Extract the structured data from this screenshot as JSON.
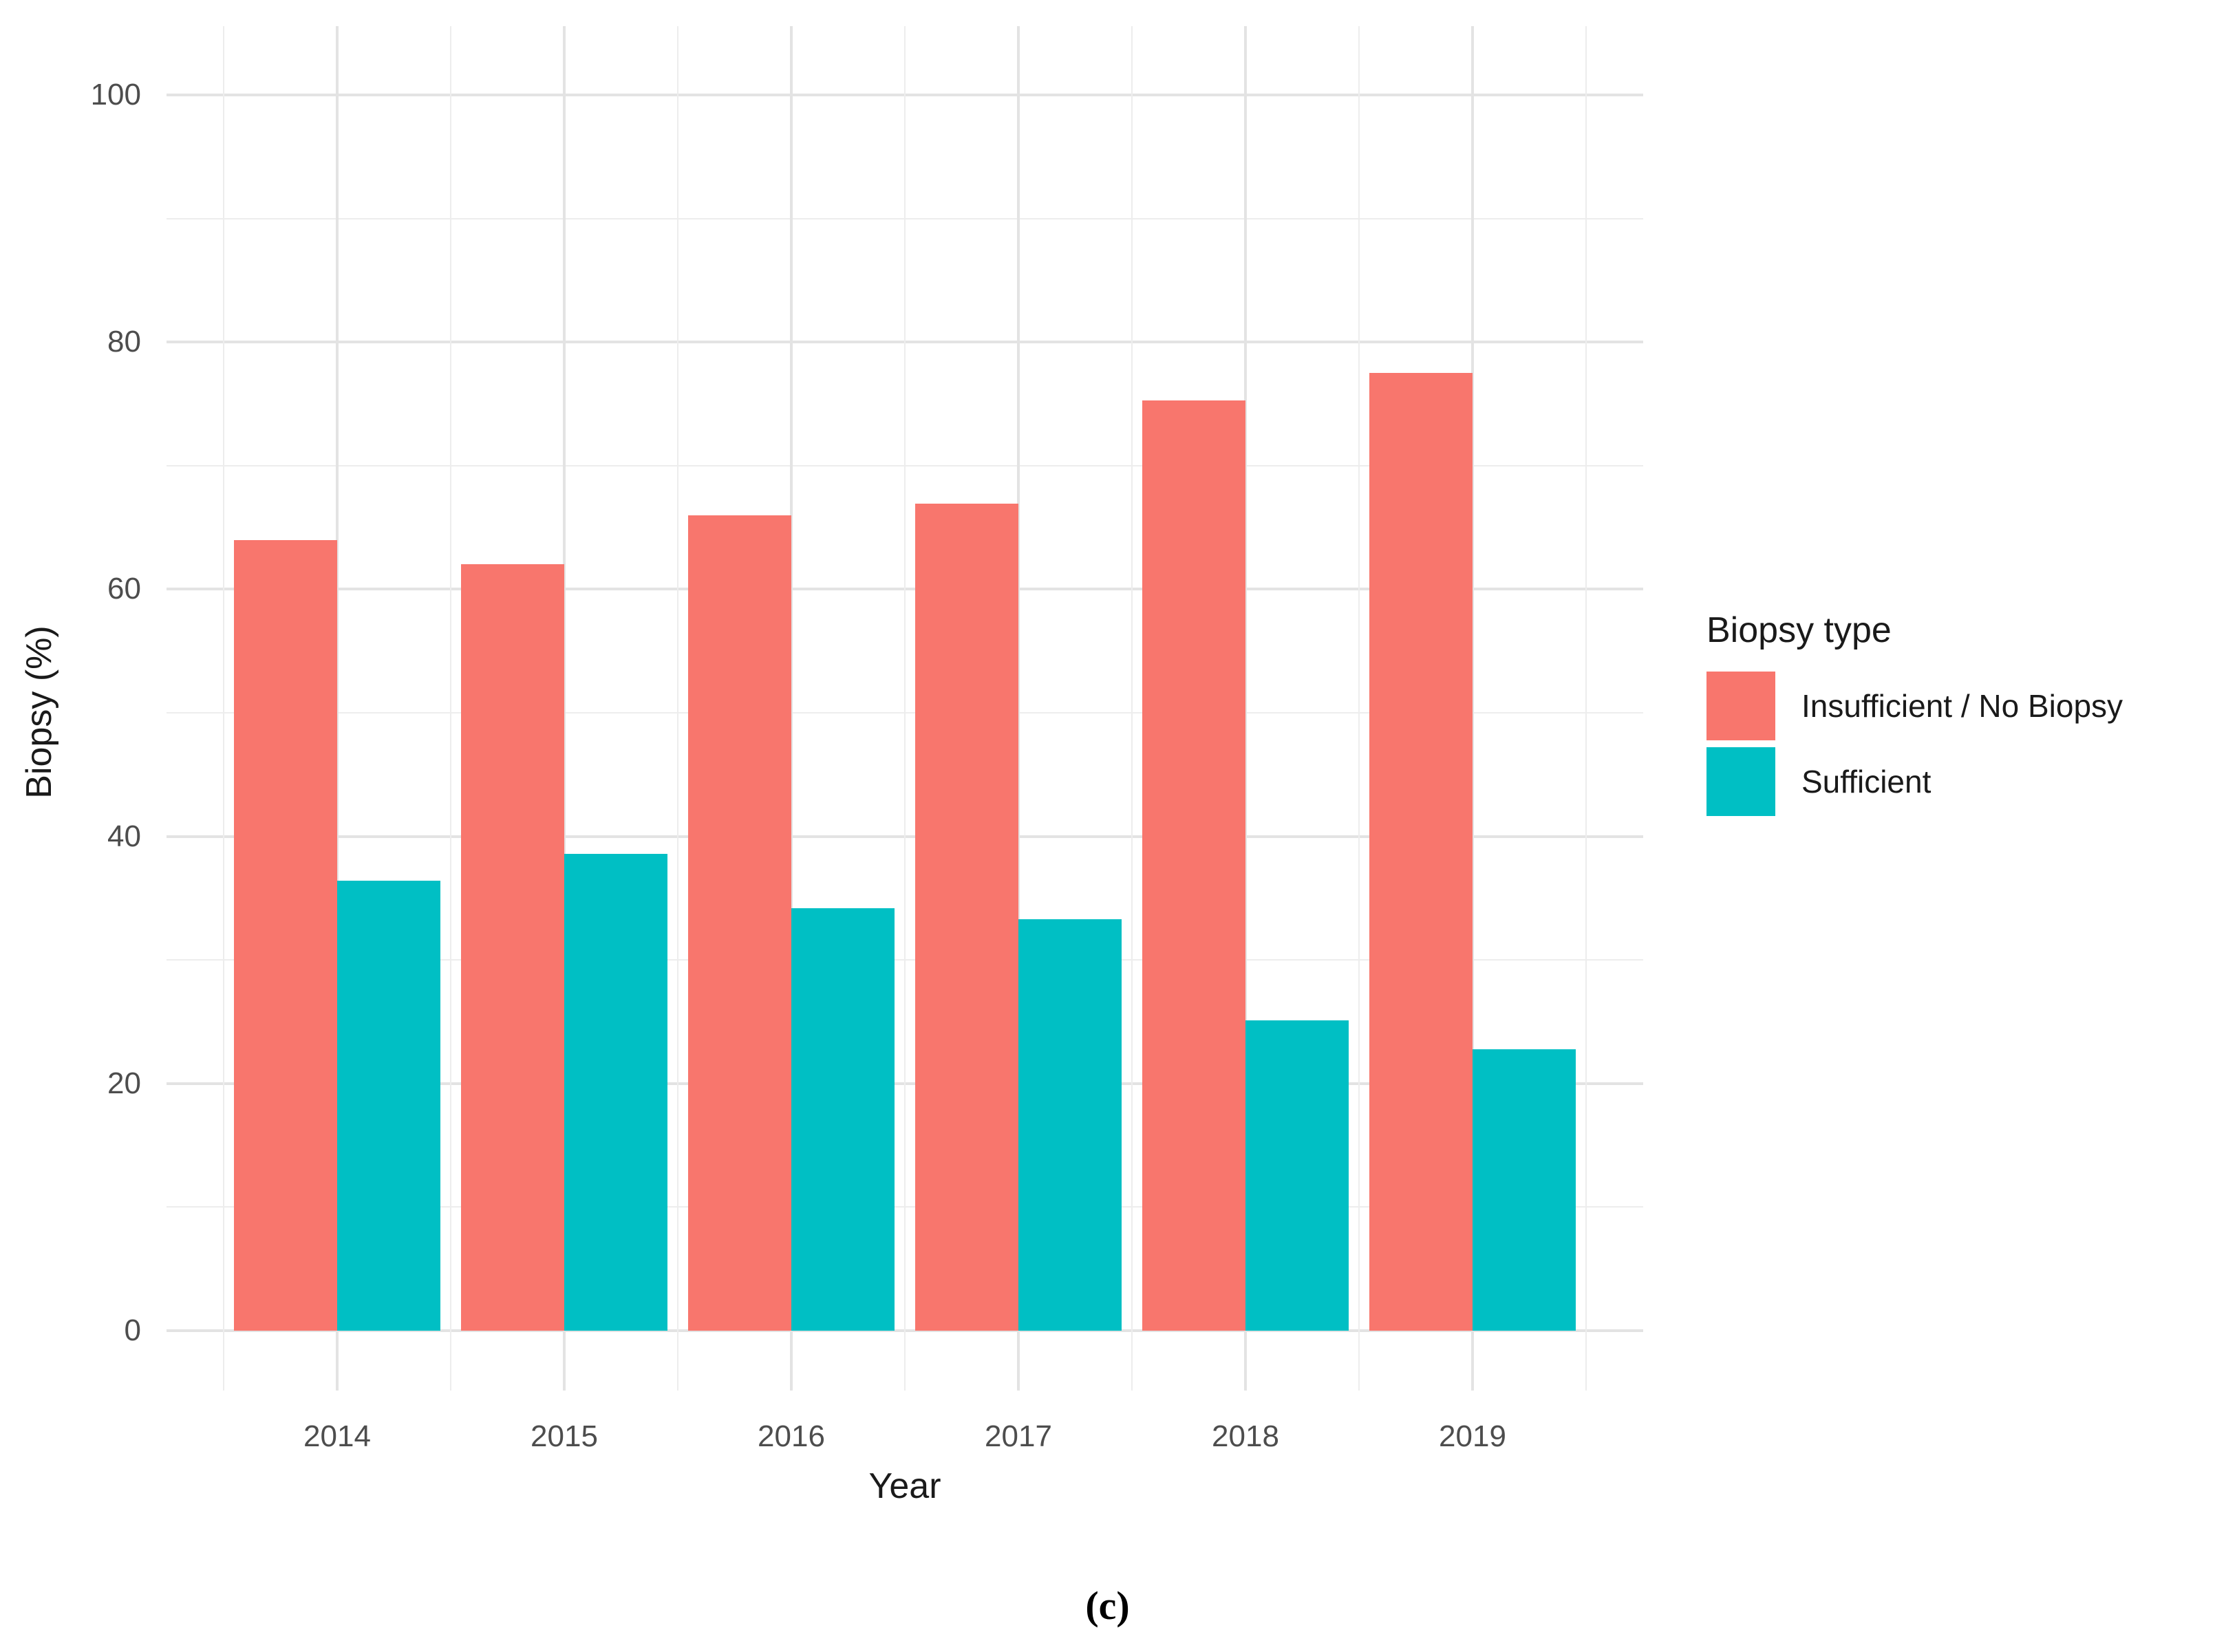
{
  "figure": {
    "caption": "(c)"
  },
  "chart_data": {
    "type": "bar",
    "title": "",
    "xlabel": "Year",
    "ylabel": "Biopsy (%)",
    "categories": [
      "2014",
      "2015",
      "2016",
      "2017",
      "2018",
      "2019"
    ],
    "series": [
      {
        "name": "Insufficient / No Biopsy",
        "color": "#F8766D",
        "values": [
          64.0,
          62.0,
          66.0,
          66.9,
          75.3,
          77.5
        ]
      },
      {
        "name": "Sufficient",
        "color": "#00BFC4",
        "values": [
          36.4,
          38.6,
          34.2,
          33.3,
          25.1,
          22.8
        ]
      }
    ],
    "ylim": [
      0,
      100
    ],
    "yticks": [
      0,
      20,
      40,
      60,
      80,
      100
    ],
    "yticks_minor": [
      10,
      30,
      50,
      70,
      90
    ],
    "grid": "on",
    "legend_title": "Biopsy type",
    "legend_position": "right",
    "bar_layout": "grouped"
  }
}
